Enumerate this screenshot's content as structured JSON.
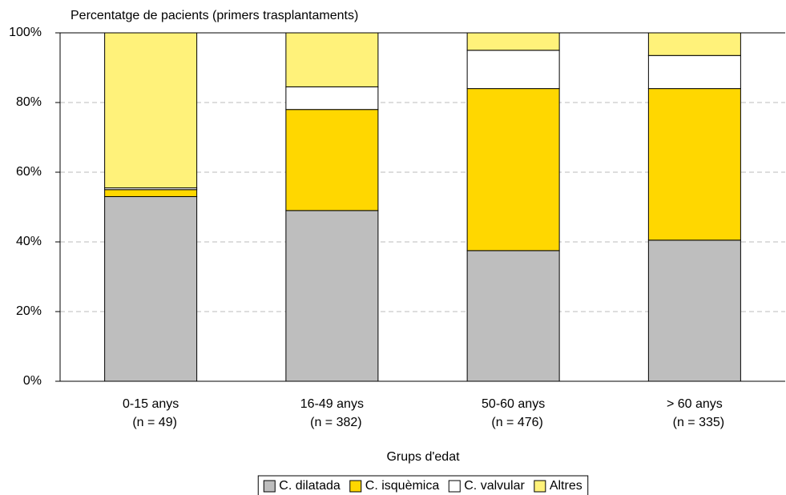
{
  "chart_data": {
    "type": "stacked_bar",
    "title": "Percentatge de pacients (primers trasplantaments)",
    "x_label": "Grups d'edat",
    "categories": [
      "0-15 anys",
      "16-49 anys",
      "50-60 anys",
      "> 60 anys"
    ],
    "category_notes": [
      "(n = 49)",
      "(n = 382)",
      "(n = 476)",
      "(n = 335)"
    ],
    "series": [
      {
        "name": "C. dilatada",
        "color": "#bebebe",
        "values": [
          53,
          49,
          37.5,
          40.5
        ]
      },
      {
        "name": "C. isquèmica",
        "color": "#ffd700",
        "values": [
          2,
          29,
          46.5,
          43.5
        ]
      },
      {
        "name": "C. valvular",
        "color": "#ffffff",
        "values": [
          0.5,
          6.5,
          11,
          9.5
        ]
      },
      {
        "name": "Altres",
        "color": "#fff27a",
        "values": [
          44.5,
          15.5,
          5,
          6.5
        ]
      }
    ],
    "ylim": [
      0,
      100
    ],
    "yticks": [
      {
        "value": 0,
        "label": "0%"
      },
      {
        "value": 20,
        "label": "20%"
      },
      {
        "value": 40,
        "label": "40%"
      },
      {
        "value": 60,
        "label": "60%"
      },
      {
        "value": 80,
        "label": "80%"
      },
      {
        "value": 100,
        "label": "100%"
      }
    ],
    "grid": true
  }
}
